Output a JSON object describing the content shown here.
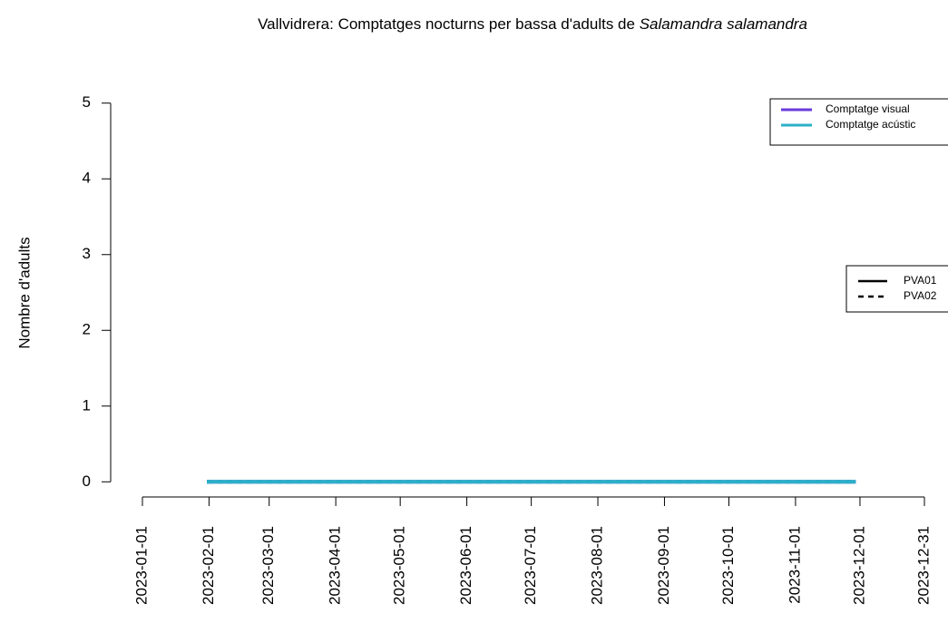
{
  "chart_data": {
    "type": "line",
    "title": {
      "text": "Vallvidrera: Comptatges nocturns per bassa d'adults de",
      "species": "Salamandra salamandra"
    },
    "y_label": "Nombre d'adults",
    "x": [
      "2023-01-31",
      "2023-02-28",
      "2023-03-29",
      "2023-04-27",
      "2023-05-26",
      "2023-06-27",
      "2023-07-27",
      "2023-08-29",
      "2023-09-28",
      "2023-10-30",
      "2023-11-29"
    ],
    "series": [
      {
        "color": "#6a3bd8",
        "dash": "solid",
        "values": [
          0,
          0,
          0,
          0,
          0,
          0,
          0,
          0,
          0,
          0,
          0
        ]
      },
      {
        "color": "#6a3bd8",
        "dash": "dashed",
        "values": [
          0,
          0,
          0,
          0,
          0,
          0,
          0,
          0,
          0,
          0,
          0
        ]
      },
      {
        "color": "#2ab0c8",
        "dash": "solid",
        "values": [
          0,
          0,
          0,
          0,
          0,
          0,
          0,
          0,
          0,
          0,
          0
        ]
      },
      {
        "color": "#2ab0c8",
        "dash": "dashed",
        "values": [
          0,
          0,
          0,
          0,
          0,
          0,
          0,
          0,
          0,
          0,
          0
        ]
      }
    ],
    "color_legend": [
      {
        "name": "Comptatge visual",
        "color": "#6a3bd8"
      },
      {
        "name": "Comptatge acústic",
        "color": "#2ab0c8"
      }
    ],
    "linetype_legend": [
      {
        "name": "PVA01",
        "dash": "solid"
      },
      {
        "name": "PVA02",
        "dash": "dashed"
      }
    ],
    "xlim": [
      "2023-01-01",
      "2023-12-31"
    ],
    "xticks": [
      "2023-01-01",
      "2023-02-01",
      "2023-03-01",
      "2023-04-01",
      "2023-05-01",
      "2023-06-01",
      "2023-07-01",
      "2023-08-01",
      "2023-09-01",
      "2023-10-01",
      "2023-11-01",
      "2023-12-01",
      "2023-12-31"
    ],
    "ylim": [
      -0.2,
      5.2
    ],
    "yticks": [
      0,
      1,
      2,
      3,
      4,
      5
    ]
  }
}
